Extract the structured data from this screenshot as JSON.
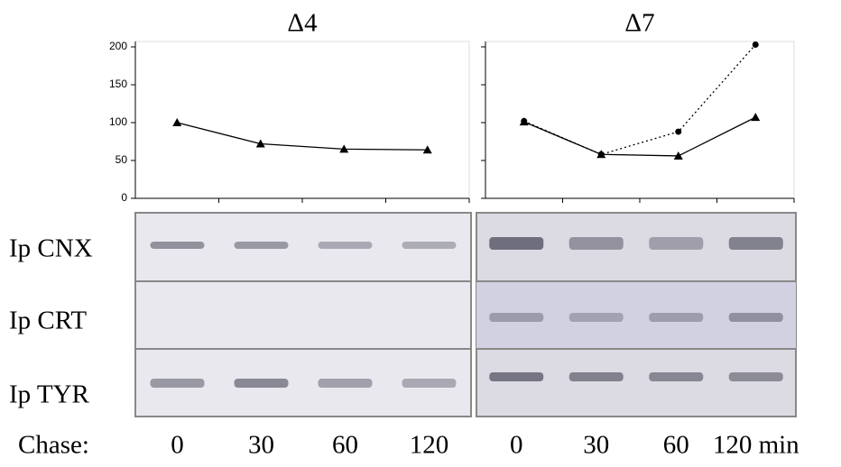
{
  "chart_data": [
    {
      "type": "line",
      "title": "Δ4",
      "categories": [
        "0",
        "30",
        "60",
        "120"
      ],
      "series": [
        {
          "color": "#000000",
          "marker": "triangle",
          "dash": "solid",
          "values": [
            100,
            72,
            65,
            64
          ]
        }
      ],
      "ylim": [
        0,
        200
      ],
      "yticks": [
        0,
        50,
        100,
        150,
        200
      ],
      "ytick_labels": true
    },
    {
      "type": "line",
      "title": "Δ7",
      "categories": [
        "0",
        "30",
        "60",
        "120 min"
      ],
      "series": [
        {
          "color": "#000000",
          "marker": "triangle",
          "dash": "solid",
          "values": [
            101,
            58,
            56,
            107
          ]
        },
        {
          "color": "#000000",
          "marker": "circle",
          "dash": "dotted",
          "values": [
            102,
            58,
            88,
            203
          ]
        }
      ],
      "ylim": [
        0,
        200
      ],
      "yticks": [
        0,
        50,
        100,
        150,
        200
      ],
      "ytick_labels": false
    }
  ],
  "blot": {
    "rows": [
      "Ip CNX",
      "Ip CRT",
      "Ip TYR"
    ],
    "chase_label": "Chase:"
  }
}
